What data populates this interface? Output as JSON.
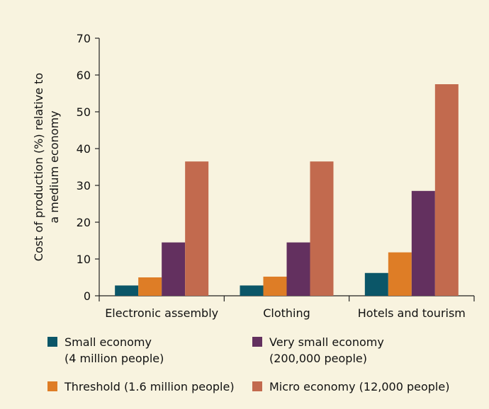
{
  "chart_data": {
    "type": "bar",
    "categories": [
      "Electronic assembly",
      "Clothing",
      "Hotels and tourism"
    ],
    "ylabel": "Cost of production (%) relative to\na medium economy",
    "xlabel": "",
    "ylim": [
      0,
      70
    ],
    "yticks": [
      0,
      10,
      20,
      30,
      40,
      50,
      60,
      70
    ],
    "grid": false,
    "legend_placement": "bottom",
    "series": [
      {
        "name": "Small economy\n(4 million people)",
        "color": "#0b5668",
        "values": [
          2.8,
          2.8,
          6.2
        ]
      },
      {
        "name": "Threshold (1.6 million people)",
        "color": "#de7d26",
        "values": [
          5.0,
          5.2,
          11.8
        ]
      },
      {
        "name": "Very small economy\n(200,000 people)",
        "color": "#63305f",
        "values": [
          14.5,
          14.5,
          28.5
        ]
      },
      {
        "name": "Micro economy (12,000 people)",
        "color": "#c26a4e",
        "values": [
          36.5,
          36.5,
          57.5
        ]
      }
    ]
  }
}
